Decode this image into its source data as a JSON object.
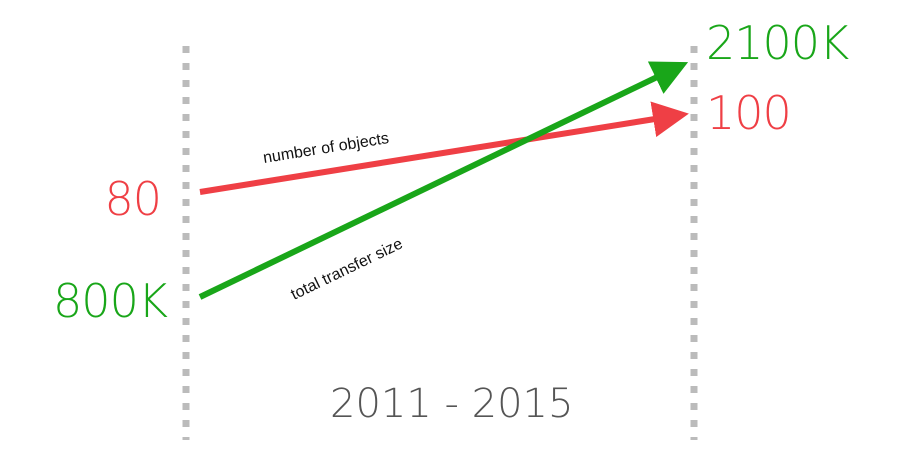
{
  "diagram": {
    "period": "2011 - 2015",
    "series": [
      {
        "key": "objects",
        "name": "number of objects",
        "start_label": "80",
        "end_label": "100",
        "color": "#ef3f45"
      },
      {
        "key": "size",
        "name": "total transfer size",
        "start_label": "800K",
        "end_label": "2100K",
        "color": "#19a619"
      }
    ],
    "colors": {
      "dots": "#bbbbbb",
      "period_text": "#555555"
    }
  }
}
